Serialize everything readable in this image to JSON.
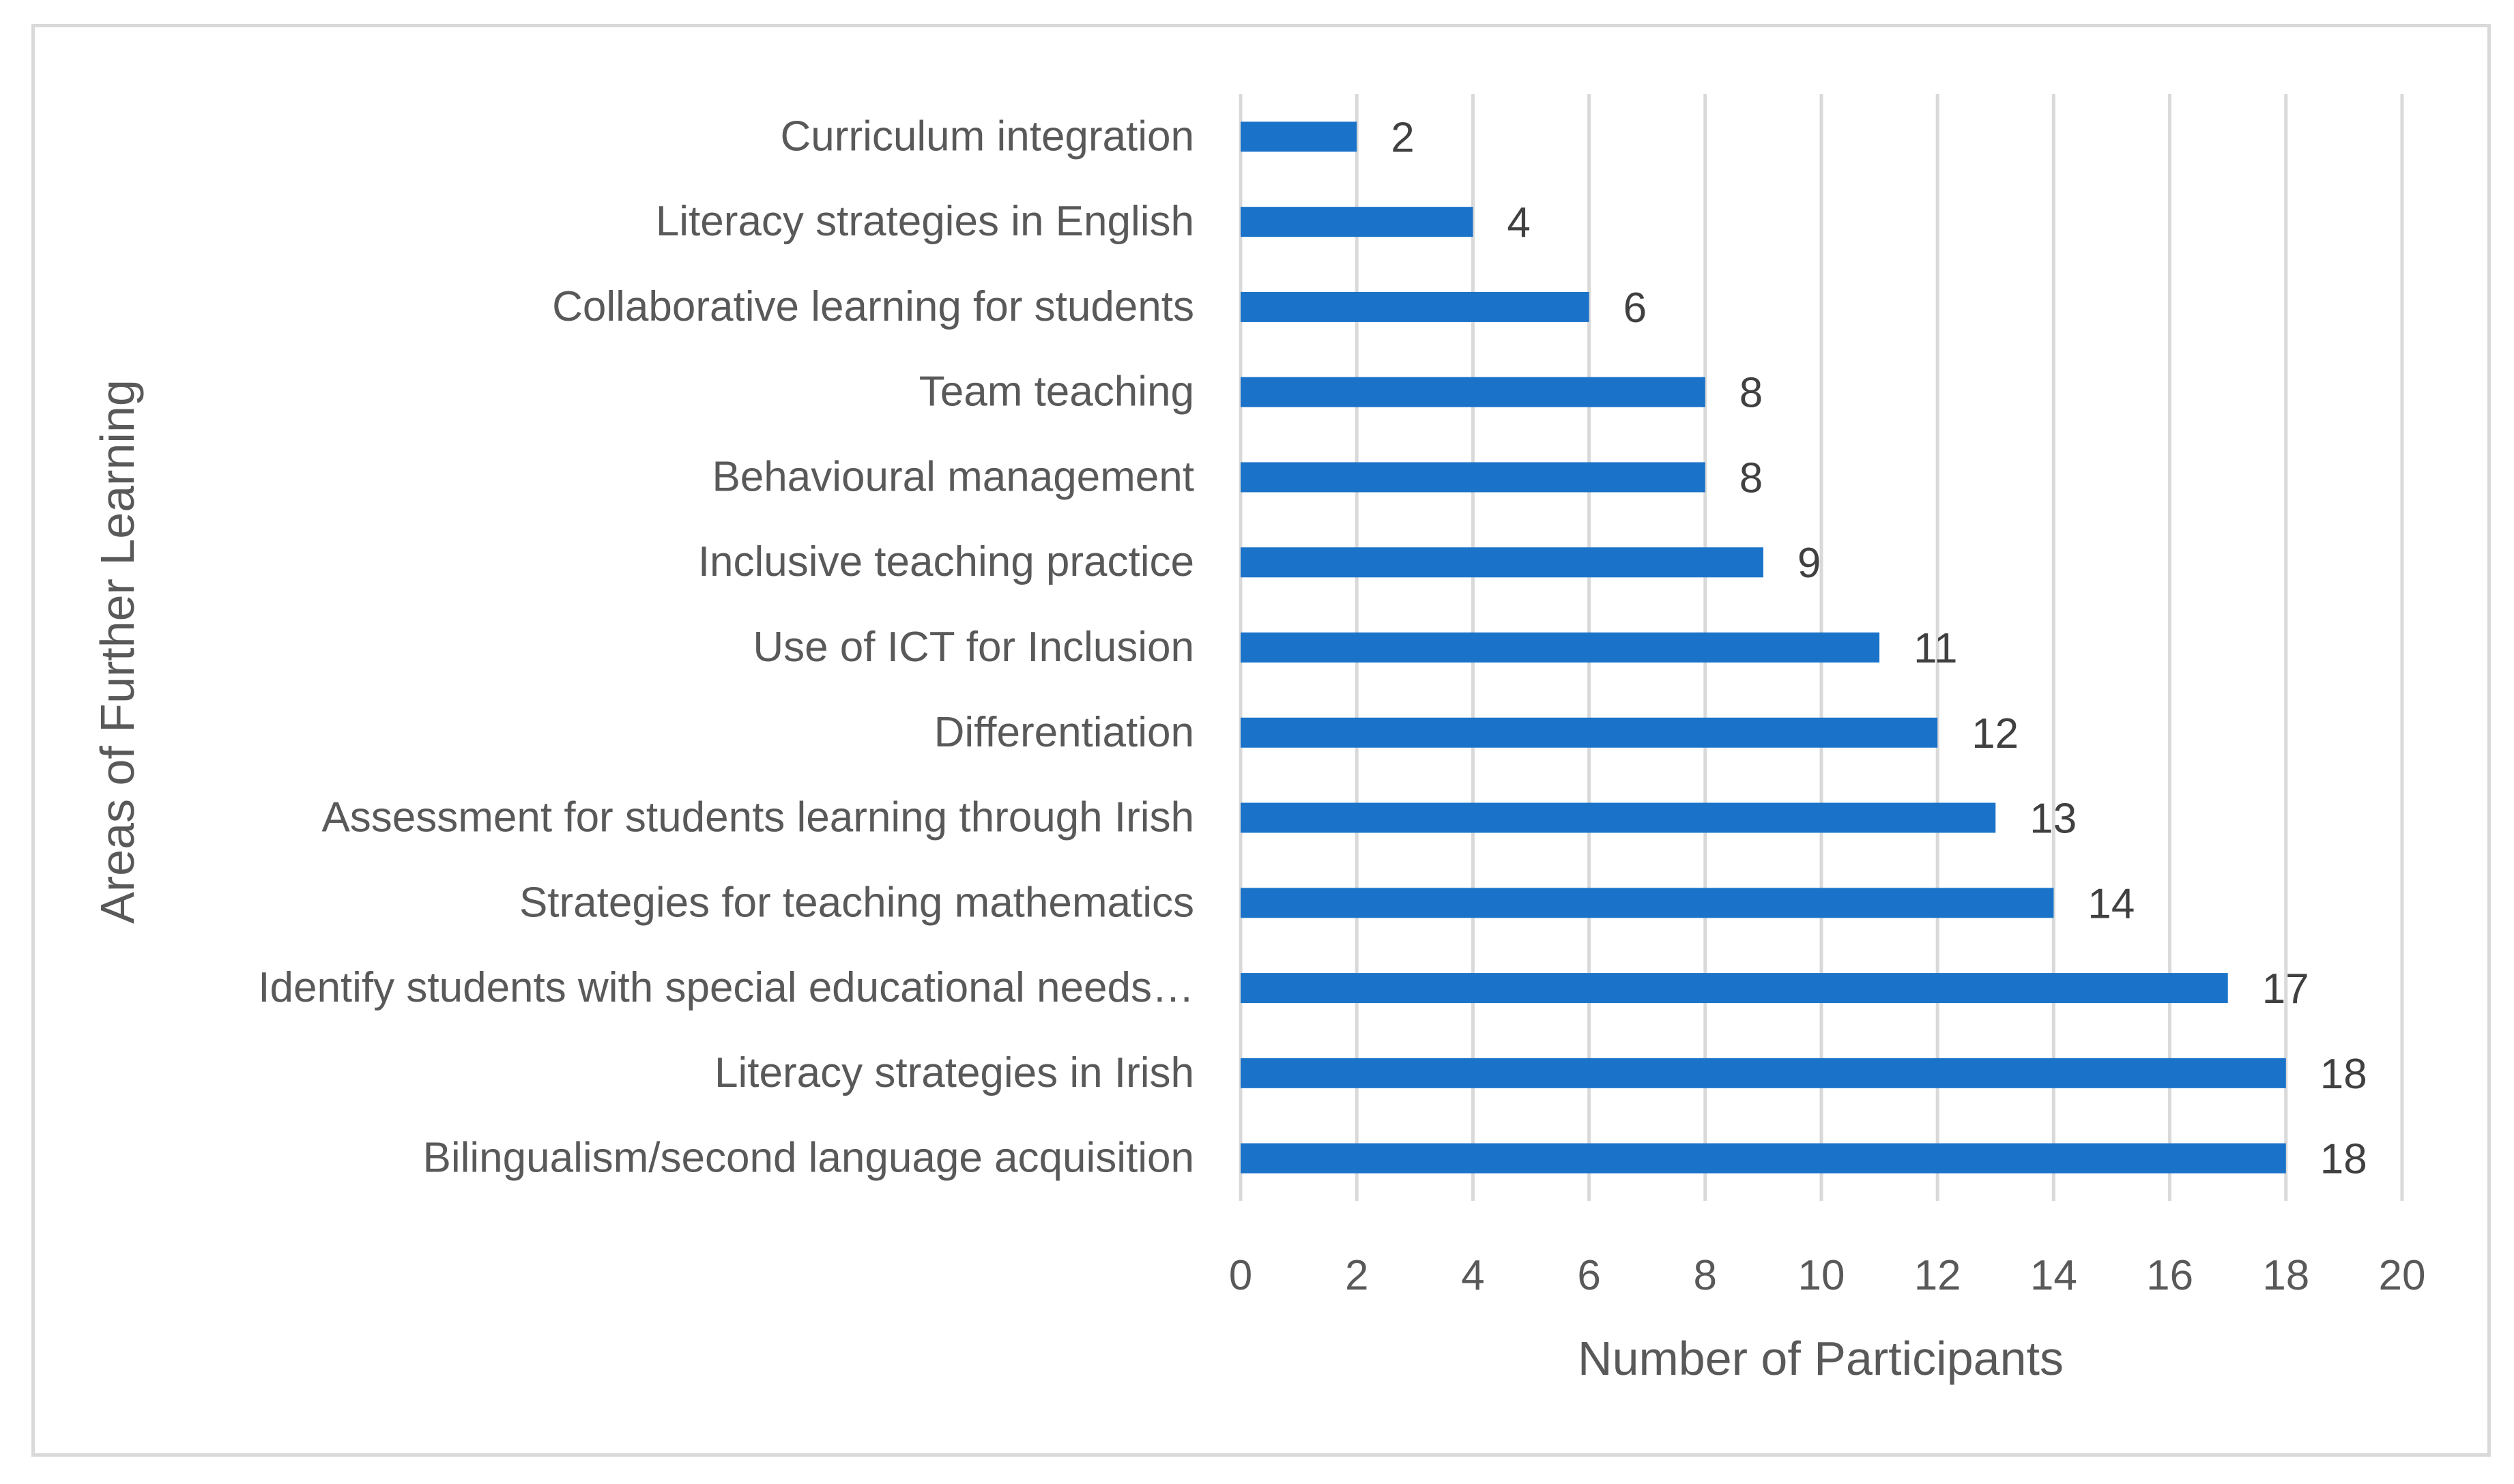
{
  "chart_data": {
    "type": "bar",
    "orientation": "horizontal",
    "categories": [
      "Curriculum integration",
      "Literacy strategies in English",
      "Collaborative learning for students",
      "Team teaching",
      "Behavioural management",
      "Inclusive teaching practice",
      "Use of ICT for Inclusion",
      "Differentiation",
      "Assessment for students learning through Irish",
      "Strategies for teaching mathematics",
      "Identify students with special educational needs…",
      "Literacy strategies in Irish",
      "Bilingualism/second language acquisition"
    ],
    "values": [
      2,
      4,
      6,
      8,
      8,
      9,
      11,
      12,
      13,
      14,
      17,
      18,
      18
    ],
    "xlabel": "Number of Participants",
    "ylabel": "Areas of Further Learning",
    "xlim": [
      0,
      20
    ],
    "xticks": [
      "0",
      "2",
      "4",
      "6",
      "8",
      "10",
      "12",
      "14",
      "16",
      "18",
      "20"
    ],
    "grid": "vertical",
    "data_labels": true,
    "legend": "none",
    "bar_color": "#1a73c8",
    "grid_color": "#d9d9d9"
  }
}
